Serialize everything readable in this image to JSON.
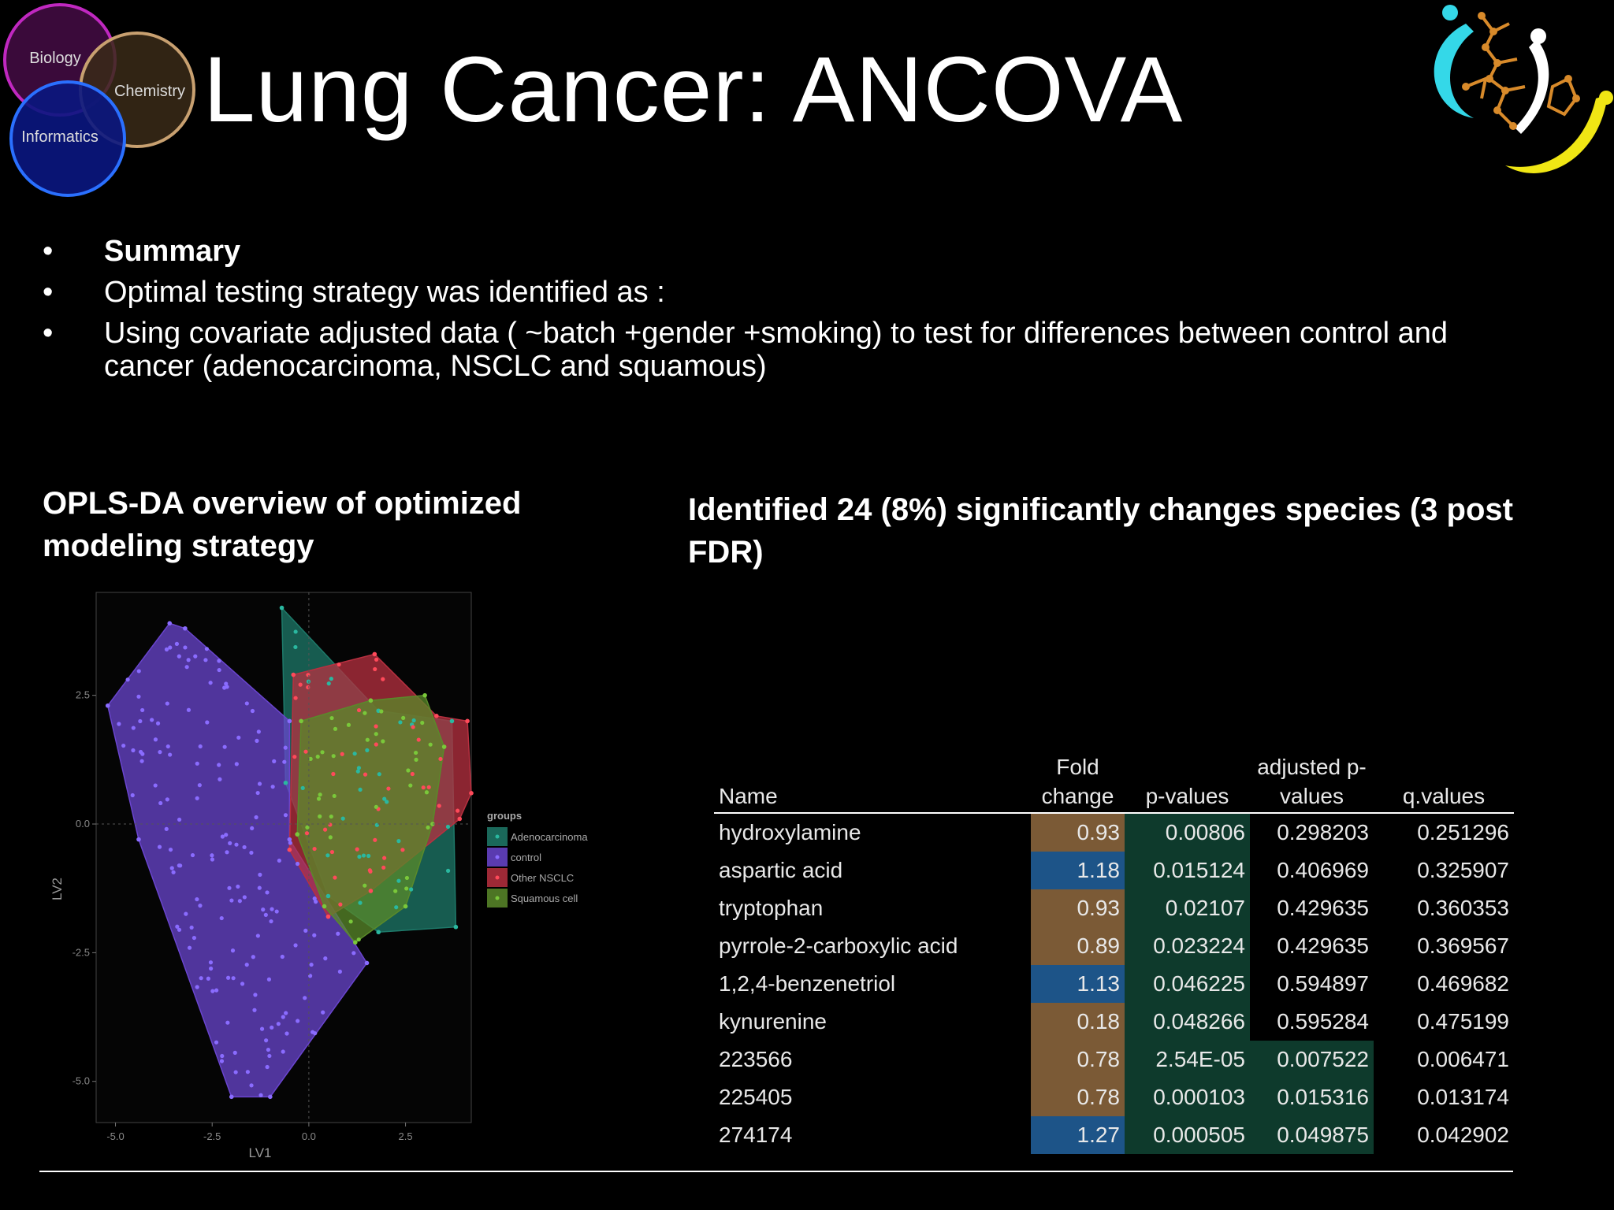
{
  "header": {
    "title": "Lung Cancer: ANCOVA",
    "venn": {
      "biology": "Biology",
      "chemistry": "Chemistry",
      "informatics": "Informatics"
    }
  },
  "bullets": [
    {
      "text": "Summary",
      "bold": true
    },
    {
      "text": "Optimal testing strategy was identified as :"
    },
    {
      "text": "Using covariate adjusted data ( ~batch +gender +smoking) to test for differences between control and cancer (adenocarcinoma, NSCLC and squamous)"
    }
  ],
  "left_heading": "OPLS-DA overview of optimized modeling strategy",
  "right_heading": "Identified 24 (8%) significantly changes species (3 post FDR)",
  "chart_data": {
    "type": "scatter",
    "xlabel": "LV1",
    "ylabel": "LV2",
    "xlim": [
      -5.5,
      4.2
    ],
    "ylim": [
      -5.8,
      4.5
    ],
    "x_ticks": [
      "-5.0",
      "-2.5",
      "0.0",
      "2.5"
    ],
    "y_ticks": [
      "2.5",
      "0.0",
      "-2.5",
      "-5.0"
    ],
    "grid": false,
    "legend": {
      "title": "groups",
      "placement": "right"
    },
    "series": [
      {
        "name": "Adenocarcinoma",
        "color": "#1e7a6a",
        "hull": [
          [
            -0.7,
            4.2
          ],
          [
            1.8,
            2.2
          ],
          [
            3.7,
            2.0
          ],
          [
            3.8,
            -2.0
          ],
          [
            1.8,
            -2.1
          ],
          [
            0.5,
            -1.4
          ],
          [
            -0.6,
            0.8
          ]
        ]
      },
      {
        "name": "control",
        "color": "#6a45cf",
        "hull": [
          [
            -5.2,
            2.3
          ],
          [
            -3.6,
            3.9
          ],
          [
            -3.2,
            3.8
          ],
          [
            -0.5,
            2.0
          ],
          [
            -0.5,
            -0.3
          ],
          [
            1.5,
            -2.7
          ],
          [
            -1.0,
            -5.3
          ],
          [
            -2.0,
            -5.3
          ],
          [
            -4.4,
            -0.3
          ]
        ]
      },
      {
        "name": "Other NSCLC",
        "color": "#b83040",
        "hull": [
          [
            -0.4,
            2.9
          ],
          [
            1.7,
            3.3
          ],
          [
            3.3,
            2.1
          ],
          [
            4.1,
            2.0
          ],
          [
            4.2,
            0.6
          ],
          [
            3.9,
            0.1
          ],
          [
            1.6,
            -1.3
          ],
          [
            0.5,
            -1.8
          ],
          [
            -0.5,
            -0.5
          ]
        ]
      },
      {
        "name": "Squamous cell",
        "color": "#5a8a2a",
        "hull": [
          [
            -0.2,
            2.0
          ],
          [
            1.6,
            2.4
          ],
          [
            3.0,
            2.5
          ],
          [
            3.5,
            1.5
          ],
          [
            3.2,
            0.0
          ],
          [
            2.5,
            -1.6
          ],
          [
            1.2,
            -2.3
          ],
          [
            0.4,
            -1.6
          ],
          [
            -0.3,
            -0.2
          ]
        ]
      }
    ]
  },
  "table": {
    "headers": [
      "Name",
      "Fold change",
      "p-values",
      "adjusted p-values",
      "q.values"
    ],
    "rows": [
      {
        "name": "hydroxylamine",
        "fc": "0.93",
        "p": "0.00806",
        "adj": "0.298203",
        "q": "0.251296",
        "fc_color": "brown",
        "adj_green": false
      },
      {
        "name": "aspartic acid",
        "fc": "1.18",
        "p": "0.015124",
        "adj": "0.406969",
        "q": "0.325907",
        "fc_color": "blue",
        "adj_green": false
      },
      {
        "name": "tryptophan",
        "fc": "0.93",
        "p": "0.02107",
        "adj": "0.429635",
        "q": "0.360353",
        "fc_color": "brown",
        "adj_green": false
      },
      {
        "name": "pyrrole-2-carboxylic acid",
        "fc": "0.89",
        "p": "0.023224",
        "adj": "0.429635",
        "q": "0.369567",
        "fc_color": "brown",
        "adj_green": false
      },
      {
        "name": "1,2,4-benzenetriol",
        "fc": "1.13",
        "p": "0.046225",
        "adj": "0.594897",
        "q": "0.469682",
        "fc_color": "blue",
        "adj_green": false
      },
      {
        "name": "kynurenine",
        "fc": "0.18",
        "p": "0.048266",
        "adj": "0.595284",
        "q": "0.475199",
        "fc_color": "brown",
        "adj_green": false
      },
      {
        "name": "223566",
        "fc": "0.78",
        "p": "2.54E-05",
        "adj": "0.007522",
        "q": "0.006471",
        "fc_color": "brown",
        "adj_green": true
      },
      {
        "name": "225405",
        "fc": "0.78",
        "p": "0.000103",
        "adj": "0.015316",
        "q": "0.013174",
        "fc_color": "brown",
        "adj_green": true
      },
      {
        "name": "274174",
        "fc": "1.27",
        "p": "0.000505",
        "adj": "0.049875",
        "q": "0.042902",
        "fc_color": "blue",
        "adj_green": true
      }
    ]
  },
  "colors": {
    "brown": "#7b5a36",
    "blue": "#1d5488",
    "green": "#0e3a2c"
  }
}
